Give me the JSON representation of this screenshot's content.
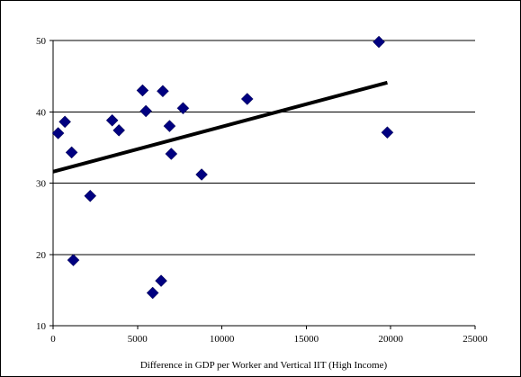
{
  "chart_data": {
    "type": "scatter",
    "title": "",
    "xlabel": "Difference in GDP per Worker and Vertical IIT (High Income)",
    "ylabel": "",
    "xlim": [
      0,
      25000
    ],
    "ylim": [
      10,
      50
    ],
    "x_ticks": [
      0,
      5000,
      10000,
      15000,
      20000,
      25000
    ],
    "y_ticks": [
      10,
      20,
      30,
      40,
      50
    ],
    "x_tick_labels": [
      "0",
      "5000",
      "10000",
      "15000",
      "20000",
      "25000"
    ],
    "y_tick_labels": [
      "10",
      "20",
      "30",
      "40",
      "50"
    ],
    "grid": "horizontal",
    "legend": "none",
    "marker": "diamond",
    "marker_color": "#000080",
    "trendline_color": "#000000",
    "points": [
      {
        "x": 300,
        "y": 37.0
      },
      {
        "x": 700,
        "y": 38.6
      },
      {
        "x": 1100,
        "y": 34.3
      },
      {
        "x": 1200,
        "y": 19.2
      },
      {
        "x": 2200,
        "y": 28.2
      },
      {
        "x": 3500,
        "y": 38.8
      },
      {
        "x": 3900,
        "y": 37.4
      },
      {
        "x": 5300,
        "y": 43.0
      },
      {
        "x": 5500,
        "y": 40.1
      },
      {
        "x": 5900,
        "y": 14.6
      },
      {
        "x": 6400,
        "y": 16.3
      },
      {
        "x": 6500,
        "y": 42.9
      },
      {
        "x": 6900,
        "y": 38.0
      },
      {
        "x": 7000,
        "y": 34.1
      },
      {
        "x": 7700,
        "y": 40.5
      },
      {
        "x": 8800,
        "y": 31.2
      },
      {
        "x": 11500,
        "y": 41.8
      },
      {
        "x": 19300,
        "y": 49.8
      },
      {
        "x": 19800,
        "y": 37.1
      }
    ],
    "trendline": {
      "x": [
        0,
        19800
      ],
      "y": [
        31.6,
        44.1
      ]
    }
  }
}
